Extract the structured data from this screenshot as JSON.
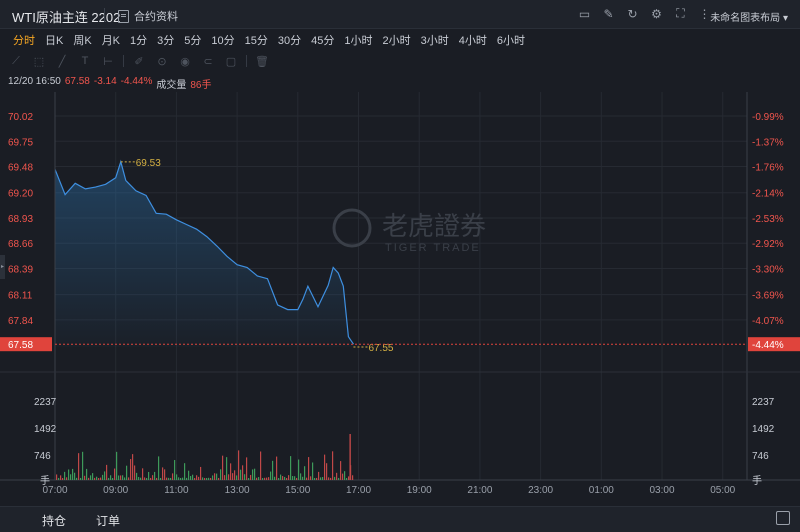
{
  "header": {
    "title": "WTI原油主连 2202",
    "contract_info": "合约资料",
    "layout_name": "未命名图表布局",
    "tools": [
      "screen-icon",
      "edit-icon",
      "refresh-icon",
      "settings-icon",
      "fullscreen-icon",
      "more-icon"
    ]
  },
  "periods": {
    "active": "分时",
    "items": [
      "分时",
      "日K",
      "周K",
      "月K",
      "1分",
      "3分",
      "5分",
      "10分",
      "15分",
      "30分",
      "45分",
      "1小时",
      "2小时",
      "3小时",
      "4小时",
      "6小时"
    ]
  },
  "info": {
    "datetime": "12/20 16:50",
    "price": "67.58",
    "change": "-3.14",
    "change_pct": "-4.44%",
    "volume_label": "成交量",
    "volume": "86手"
  },
  "watermark": {
    "cn": "老虎證券",
    "en": "TIGER TRADE"
  },
  "chart_data": {
    "type": "area",
    "price_ticks": [
      "70.02",
      "69.75",
      "69.48",
      "69.20",
      "68.93",
      "68.66",
      "68.39",
      "68.11",
      "67.84"
    ],
    "pct_ticks": [
      "-0.99%",
      "-1.37%",
      "-1.76%",
      "-2.14%",
      "-2.53%",
      "-2.92%",
      "-3.30%",
      "-3.69%",
      "-4.07%"
    ],
    "current_price": "67.58",
    "current_pct": "-4.44%",
    "high_label": "69.53",
    "low_label": "67.55",
    "volume_ticks": [
      "2237",
      "1492",
      "746"
    ],
    "volume_unit": "手",
    "time_ticks": [
      "07:00",
      "09:00",
      "11:00",
      "13:00",
      "15:00",
      "17:00",
      "19:00",
      "21:00",
      "23:00",
      "01:00",
      "03:00",
      "05:00"
    ],
    "x": [
      "07:00",
      "07:20",
      "07:40",
      "08:00",
      "08:20",
      "08:40",
      "09:00",
      "09:10",
      "09:20",
      "09:40",
      "10:00",
      "10:20",
      "10:40",
      "11:00",
      "11:20",
      "11:40",
      "12:00",
      "12:20",
      "12:40",
      "13:00",
      "13:20",
      "13:40",
      "14:00",
      "14:20",
      "14:40",
      "15:00",
      "15:10",
      "15:20",
      "15:40",
      "16:00",
      "16:10",
      "16:20",
      "16:30",
      "16:40",
      "16:50"
    ],
    "y": [
      69.45,
      69.18,
      69.3,
      69.24,
      69.26,
      69.29,
      69.36,
      69.53,
      69.33,
      69.22,
      69.17,
      68.98,
      68.97,
      68.91,
      68.86,
      68.81,
      68.73,
      68.63,
      68.52,
      68.43,
      68.4,
      68.31,
      68.28,
      68.0,
      67.95,
      67.95,
      68.06,
      68.2,
      67.98,
      68.21,
      68.4,
      68.34,
      68.2,
      67.66,
      67.58
    ],
    "ylim": [
      67.55,
      70.02
    ]
  },
  "bottom": {
    "tabs": [
      "持仓",
      "订单"
    ]
  }
}
